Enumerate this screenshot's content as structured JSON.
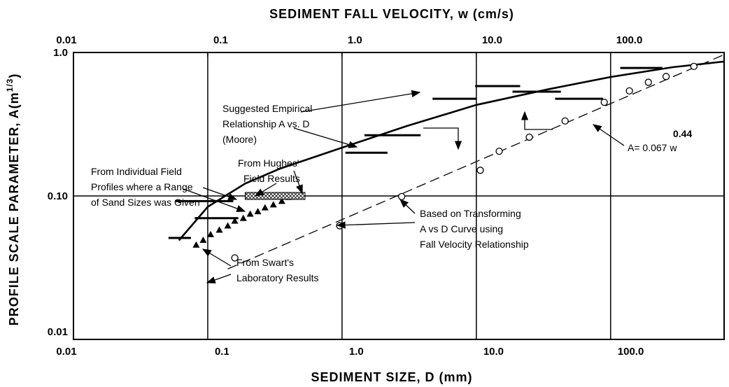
{
  "chart_data": {
    "type": "scatter",
    "xlabel": "SEDIMENT SIZE, D (mm)",
    "x2label": "SEDIMENT FALL VELOCITY, w (cm/s)",
    "ylabel": [
      "PROFILE SCALE PARAMETER, A(m",
      "1/3",
      ")"
    ],
    "log_x": true,
    "log_y": true,
    "grid": true,
    "xlim": [
      0.01,
      700
    ],
    "xticks": [
      0.01,
      0.1,
      {
        "value": 1,
        "label": "1.0"
      },
      {
        "value": 10,
        "label": "10.0"
      },
      {
        "value": 100,
        "label": "100.0"
      }
    ],
    "x2lim": [
      0.01,
      700
    ],
    "x2ticks": [
      0.01,
      0.1,
      {
        "value": 1,
        "label": "1.0"
      },
      {
        "value": 10,
        "label": "10.0"
      },
      {
        "value": 100,
        "label": "100.0"
      }
    ],
    "ylim": [
      0.01,
      1.0
    ],
    "yticks": [
      0.01,
      {
        "value": 0.1,
        "label": "0.10"
      },
      {
        "value": 1,
        "label": "1.0"
      }
    ],
    "series": [
      {
        "marker": "line",
        "style": "solid",
        "color": "#000000",
        "x": [
          0.061,
          0.1,
          0.19,
          0.345,
          1.0,
          3.03,
          10,
          33.3,
          100,
          290,
          700
        ],
        "values": [
          0.049,
          0.084,
          0.122,
          0.155,
          0.217,
          0.307,
          0.431,
          0.551,
          0.675,
          0.79,
          0.865
        ]
      },
      {
        "marker": "line",
        "style": "dashed",
        "color": "#000000",
        "x": [
          0.141,
          700
        ],
        "values": [
          0.031,
          0.966
        ]
      },
      {
        "marker": "circle",
        "color": "#000000",
        "x": [
          0.159,
          0.96,
          2.78,
          10.7,
          14.8,
          24.8,
          45.8,
          89.7,
          138,
          191,
          259,
          417
        ],
        "values": [
          0.037,
          0.062,
          0.099,
          0.151,
          0.205,
          0.257,
          0.333,
          0.45,
          0.54,
          0.62,
          0.68,
          0.8
        ]
      },
      {
        "marker": "triangle",
        "color": "#000000",
        "x": [
          0.082,
          0.0925,
          0.105,
          0.122,
          0.141,
          0.159,
          0.184,
          0.207,
          0.236,
          0.267,
          0.308,
          0.356,
          0.401
        ],
        "values": [
          0.0456,
          0.0493,
          0.054,
          0.058,
          0.062,
          0.067,
          0.07,
          0.075,
          0.078,
          0.083,
          0.087,
          0.092,
          0.098
        ]
      },
      {
        "marker": "dash",
        "color": "#000000",
        "x_start": [
          0.051,
          0.08,
          0.057,
          1.06,
          1.47,
          4.72,
          9.8,
          18.6,
          38.6,
          118
        ],
        "x_end": [
          0.075,
          0.169,
          0.155,
          2.18,
          3.85,
          10.1,
          21.2,
          42.6,
          87.7,
          243
        ],
        "values": [
          0.051,
          0.07,
          0.092,
          0.2,
          0.265,
          0.476,
          0.583,
          0.533,
          0.476,
          0.78
        ]
      },
      {
        "marker": "hatch",
        "color": "#000000",
        "x_start": [
          0.19
        ],
        "x_end": [
          0.53
        ],
        "values": [
          0.1
        ]
      }
    ],
    "annotations": [
      [
        "Suggested Empirical",
        "Relationship A vs. D",
        "(Moore)"
      ],
      [
        "From Hughes'",
        "Field Results"
      ],
      [
        "From Individual Field",
        "Profiles where a Range",
        "of Sand Sizes was Given"
      ],
      [
        "From Swart's",
        "Laboratory Results"
      ],
      [
        "Based on Transforming",
        "A vs D Curve using",
        "Fall Velocity Relationship"
      ]
    ],
    "formula": [
      "A= 0.067  w",
      "0.44"
    ]
  }
}
